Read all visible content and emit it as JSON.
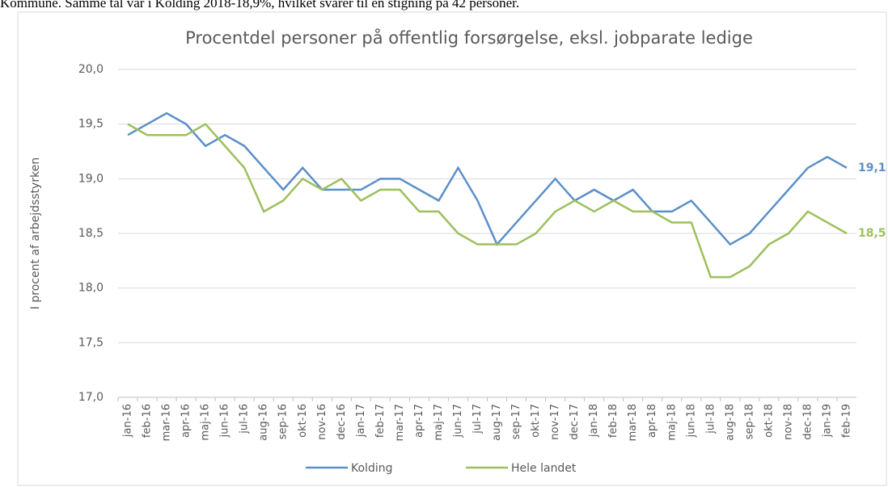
{
  "caption": "Kommune. Samme tal var i Kolding 2018-18,9%, hvilket svarer til en stigning på 42 personer.",
  "chart_data": {
    "type": "line",
    "title": "Procentdel personer på offentlig forsørgelse, eksl. jobparate ledige",
    "y_label": "I procent af arbejdsstyrken",
    "categories": [
      "jan-16",
      "feb-16",
      "mar-16",
      "apr-16",
      "maj-16",
      "jun-16",
      "jul-16",
      "aug-16",
      "sep-16",
      "okt-16",
      "nov-16",
      "dec-16",
      "jan-17",
      "feb-17",
      "mar-17",
      "apr-17",
      "maj-17",
      "jun-17",
      "jul-17",
      "aug-17",
      "sep-17",
      "okt-17",
      "nov-17",
      "dec-17",
      "jan-18",
      "feb-18",
      "mar-18",
      "apr-18",
      "maj-18",
      "jun-18",
      "jul-18",
      "aug-18",
      "sep-18",
      "okt-18",
      "nov-18",
      "dec-18",
      "jan-19",
      "feb-19"
    ],
    "series": [
      {
        "name": "Kolding",
        "color": "#5b8fc9",
        "values": [
          19.4,
          19.5,
          19.6,
          19.5,
          19.3,
          19.4,
          19.3,
          19.1,
          18.9,
          19.1,
          18.9,
          18.9,
          18.9,
          19.0,
          19.0,
          18.9,
          18.8,
          19.1,
          18.8,
          18.4,
          18.6,
          18.8,
          19.0,
          18.8,
          18.9,
          18.8,
          18.9,
          18.7,
          18.7,
          18.8,
          18.6,
          18.4,
          18.5,
          18.7,
          18.9,
          19.1,
          19.2,
          19.1
        ],
        "value_labels": [
          null,
          null,
          null,
          null,
          null,
          null,
          null,
          null,
          null,
          null,
          null,
          null,
          null,
          null,
          null,
          null,
          null,
          null,
          null,
          null,
          null,
          null,
          null,
          null,
          null,
          null,
          null,
          null,
          null,
          null,
          null,
          null,
          null,
          null,
          null,
          null,
          null,
          "19,1"
        ]
      },
      {
        "name": "Hele landet",
        "color": "#9cc05c",
        "values": [
          19.5,
          19.4,
          19.4,
          19.4,
          19.5,
          19.3,
          19.1,
          18.7,
          18.8,
          19.0,
          18.9,
          19.0,
          18.8,
          18.9,
          18.9,
          18.7,
          18.7,
          18.5,
          18.4,
          18.4,
          18.4,
          18.5,
          18.7,
          18.8,
          18.7,
          18.8,
          18.7,
          18.7,
          18.6,
          18.6,
          18.1,
          18.1,
          18.2,
          18.4,
          18.5,
          18.7,
          18.6,
          18.5
        ],
        "value_labels": [
          null,
          null,
          null,
          null,
          null,
          null,
          null,
          null,
          null,
          null,
          null,
          null,
          null,
          null,
          null,
          null,
          null,
          null,
          null,
          null,
          null,
          null,
          null,
          null,
          null,
          null,
          null,
          null,
          null,
          null,
          null,
          null,
          null,
          null,
          null,
          null,
          null,
          "18,5"
        ]
      }
    ],
    "ylim": [
      17,
      20
    ],
    "yticks": [
      {
        "value": 17,
        "label": "17,0"
      },
      {
        "value": 17.5,
        "label": "17,5"
      },
      {
        "value": 18,
        "label": "18,0"
      },
      {
        "value": 18.5,
        "label": "18,5"
      },
      {
        "value": 19,
        "label": "19,0"
      },
      {
        "value": 19.5,
        "label": "19,5"
      },
      {
        "value": 20,
        "label": "20,0"
      }
    ],
    "grid": true,
    "legend": "bottom"
  }
}
